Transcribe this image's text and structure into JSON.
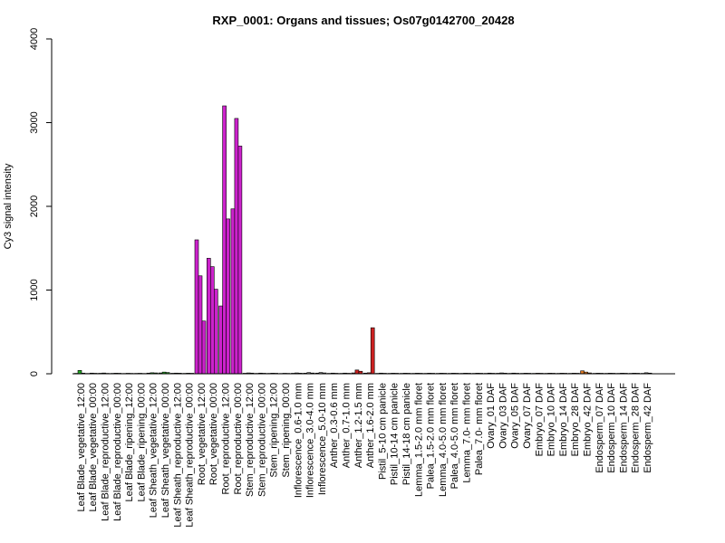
{
  "chart_data": {
    "type": "bar",
    "title": "RXP_0001: Organs and tissues; Os07g0142700_20428",
    "xlabel": "",
    "ylabel": "Cy3 signal intensity",
    "ylim": [
      0,
      4000
    ],
    "yticks": [
      0,
      1000,
      2000,
      3000,
      4000
    ],
    "grid": false,
    "legend": "none",
    "groups": [
      {
        "label": "Leaf Blade_vegetative_12:00",
        "color": "#22aa22",
        "values": [
          5,
          40,
          8
        ]
      },
      {
        "label": "Leaf Blade_vegetative_00:00",
        "color": "#22aa22",
        "values": [
          4,
          8,
          6
        ]
      },
      {
        "label": "Leaf Blade_reproductive_12:00",
        "color": "#22aa22",
        "values": [
          6,
          9,
          5
        ]
      },
      {
        "label": "Leaf Blade_reproductive_00:00",
        "color": "#22aa22",
        "values": [
          5,
          7,
          6
        ]
      },
      {
        "label": "Leaf Blade_ripening_12:00",
        "color": "#22aa22",
        "values": [
          4,
          6,
          5
        ]
      },
      {
        "label": "Leaf Blade_ripening_00:00",
        "color": "#22aa22",
        "values": [
          5,
          6,
          4
        ]
      },
      {
        "label": "Leaf Sheath_vegetative_12:00",
        "color": "#22aa22",
        "values": [
          8,
          12,
          10
        ]
      },
      {
        "label": "Leaf Sheath_vegetative_00:00",
        "color": "#22aa22",
        "values": [
          10,
          20,
          15
        ]
      },
      {
        "label": "Leaf Sheath_reproductive_12:00",
        "color": "#22aa22",
        "values": [
          6,
          8,
          7
        ]
      },
      {
        "label": "Leaf Sheath_reproductive_00:00",
        "color": "#22aa22",
        "values": [
          5,
          7,
          6
        ]
      },
      {
        "label": "Root_vegetative_12:00",
        "color": "#cc22cc",
        "values": [
          1600,
          1170,
          630
        ]
      },
      {
        "label": "Root_vegetative_00:00",
        "color": "#cc22cc",
        "values": [
          1380,
          1280,
          1010
        ]
      },
      {
        "label": "Root_reproductive_12:00",
        "color": "#cc22cc",
        "values": [
          810,
          3200,
          1850
        ]
      },
      {
        "label": "Root_reproductive_00:00",
        "color": "#cc22cc",
        "values": [
          1970,
          3050,
          2720
        ]
      },
      {
        "label": "Stem_reproductive_12:00",
        "color": "#888888",
        "values": [
          6,
          10,
          8
        ]
      },
      {
        "label": "Stem_reproductive_00:00",
        "color": "#888888",
        "values": [
          5,
          8,
          6
        ]
      },
      {
        "label": "Stem_ripening_12:00",
        "color": "#888888",
        "values": [
          5,
          7,
          6
        ]
      },
      {
        "label": "Stem_ripening_00:00",
        "color": "#888888",
        "values": [
          4,
          6,
          5
        ]
      },
      {
        "label": "Inflorescence_0.6-1.0 mm",
        "color": "#888888",
        "values": [
          6,
          10,
          7
        ]
      },
      {
        "label": "Inflorescence_3.0-4.0 mm",
        "color": "#888888",
        "values": [
          7,
          14,
          9
        ]
      },
      {
        "label": "Inflorescence_5.0-10 mm",
        "color": "#888888",
        "values": [
          8,
          15,
          10
        ]
      },
      {
        "label": "Anther_0.3-0.6 mm",
        "color": "#cc2222",
        "values": [
          5,
          8,
          6
        ]
      },
      {
        "label": "Anther_0.7-1.0 mm",
        "color": "#cc2222",
        "values": [
          5,
          8,
          6
        ]
      },
      {
        "label": "Anther_1.2-1.5 mm",
        "color": "#cc2222",
        "values": [
          10,
          45,
          30
        ]
      },
      {
        "label": "Anther_1.6-2.0 mm",
        "color": "#cc2222",
        "values": [
          8,
          12,
          550
        ]
      },
      {
        "label": "Pistil_5-10 cm panicle",
        "color": "#888888",
        "values": [
          5,
          8,
          6
        ]
      },
      {
        "label": "Pistil_10-14 cm panicle",
        "color": "#888888",
        "values": [
          5,
          7,
          6
        ]
      },
      {
        "label": "Pistil_14-18 cm panicle",
        "color": "#888888",
        "values": [
          5,
          7,
          6
        ]
      },
      {
        "label": "Lemma_1.5-2.0 mm floret",
        "color": "#888888",
        "values": [
          5,
          7,
          6
        ]
      },
      {
        "label": "Palea_1.5-2.0 mm floret",
        "color": "#888888",
        "values": [
          5,
          7,
          6
        ]
      },
      {
        "label": "Lemma_4.0-5.0 mm floret",
        "color": "#888888",
        "values": [
          5,
          7,
          6
        ]
      },
      {
        "label": "Palea_4.0-5.0 mm floret",
        "color": "#888888",
        "values": [
          5,
          7,
          6
        ]
      },
      {
        "label": "Lemma_7.0- mm floret",
        "color": "#888888",
        "values": [
          5,
          7,
          6
        ]
      },
      {
        "label": "Palea_7.0- mm floret",
        "color": "#888888",
        "values": [
          5,
          7,
          6
        ]
      },
      {
        "label": "Ovary_01 DAF",
        "color": "#888888",
        "values": [
          5,
          8,
          6
        ]
      },
      {
        "label": "Ovary_03 DAF",
        "color": "#888888",
        "values": [
          6,
          10,
          7
        ]
      },
      {
        "label": "Ovary_05 DAF",
        "color": "#888888",
        "values": [
          5,
          8,
          6
        ]
      },
      {
        "label": "Ovary_07 DAF",
        "color": "#888888",
        "values": [
          5,
          7,
          6
        ]
      },
      {
        "label": "Embryo_07 DAF",
        "color": "#dd7722",
        "values": [
          5,
          7,
          6
        ]
      },
      {
        "label": "Embryo_10 DAF",
        "color": "#dd7722",
        "values": [
          5,
          7,
          6
        ]
      },
      {
        "label": "Embryo_14 DAF",
        "color": "#dd7722",
        "values": [
          5,
          7,
          6
        ]
      },
      {
        "label": "Embryo_28 DAF",
        "color": "#dd7722",
        "values": [
          5,
          7,
          6
        ]
      },
      {
        "label": "Embryo_42 DAF",
        "color": "#dd7722",
        "values": [
          35,
          20,
          10
        ]
      },
      {
        "label": "Endosperm_07 DAF",
        "color": "#888888",
        "values": [
          5,
          7,
          6
        ]
      },
      {
        "label": "Endosperm_10 DAF",
        "color": "#888888",
        "values": [
          5,
          7,
          6
        ]
      },
      {
        "label": "Endosperm_14 DAF",
        "color": "#888888",
        "values": [
          5,
          7,
          6
        ]
      },
      {
        "label": "Endosperm_28 DAF",
        "color": "#888888",
        "values": [
          5,
          7,
          6
        ]
      },
      {
        "label": "Endosperm_42 DAF",
        "color": "#888888",
        "values": [
          5,
          12,
          8
        ]
      }
    ]
  }
}
